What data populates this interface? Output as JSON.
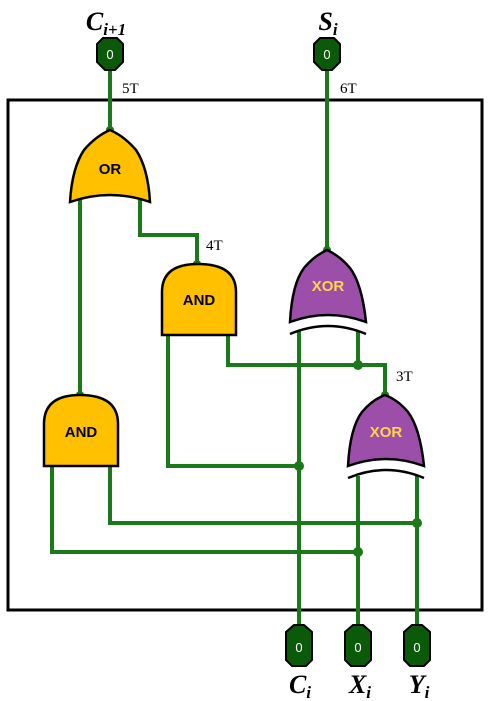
{
  "outputs": {
    "carry_out": {
      "name": "C",
      "sub": "i+1",
      "value": "0",
      "delay": "5T"
    },
    "sum": {
      "name": "S",
      "sub": "i",
      "value": "0",
      "delay": "6T"
    }
  },
  "inputs": {
    "carry_in": {
      "name": "C",
      "sub": "i",
      "value": "0"
    },
    "x": {
      "name": "X",
      "sub": "i",
      "value": "0"
    },
    "y": {
      "name": "Y",
      "sub": "i",
      "value": "0"
    }
  },
  "gates": {
    "or_gate": {
      "label": "OR"
    },
    "and_top": {
      "label": "AND",
      "delay": "4T"
    },
    "and_bottom": {
      "label": "AND"
    },
    "xor_top": {
      "label": "XOR"
    },
    "xor_bottom": {
      "label": "XOR",
      "delay": "3T"
    }
  },
  "colors": {
    "wire": "#1a7a1a",
    "and_or_fill": "#ffc000",
    "xor_fill": "#9b4fa8",
    "pin": "#0a5a0a"
  }
}
